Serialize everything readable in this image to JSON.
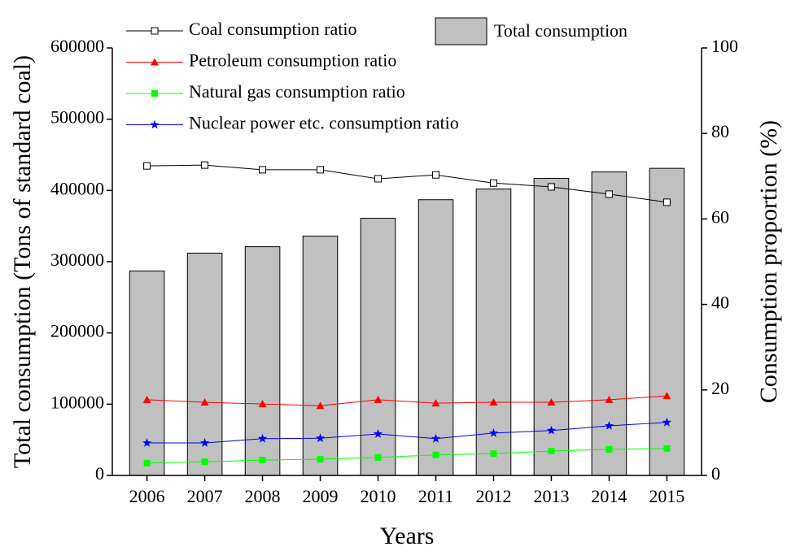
{
  "chart_data": {
    "type": "combo",
    "x_label": "Years",
    "y_label": "Total consumption (Tons of standard coal)",
    "y2_label": "Consumption proportion (%)",
    "categories": [
      "2006",
      "2007",
      "2008",
      "2009",
      "2010",
      "2011",
      "2012",
      "2013",
      "2014",
      "2015"
    ],
    "ylim": [
      0,
      600000
    ],
    "yticks": [
      0,
      100000,
      200000,
      300000,
      400000,
      500000,
      600000
    ],
    "y2lim": [
      0,
      100
    ],
    "y2ticks": [
      0,
      20,
      40,
      60,
      80,
      100
    ],
    "series": [
      {
        "name": "Coal consumption ratio",
        "type": "line",
        "axis": "y2",
        "color": "#000000",
        "marker": "open-square",
        "values": [
          72.4,
          72.6,
          71.5,
          71.5,
          69.4,
          70.3,
          68.4,
          67.5,
          65.8,
          63.9
        ]
      },
      {
        "name": "Total consumption",
        "type": "bar",
        "axis": "y",
        "color": "#c0c0c0",
        "values": [
          287000,
          312000,
          321000,
          336000,
          361000,
          387000,
          402000,
          417000,
          426000,
          431000
        ]
      },
      {
        "name": "Petroleum consumption ratio",
        "type": "line",
        "axis": "y2",
        "color": "#ff0000",
        "marker": "triangle",
        "values": [
          17.7,
          17.1,
          16.7,
          16.3,
          17.7,
          16.9,
          17.1,
          17.1,
          17.7,
          18.6
        ]
      },
      {
        "name": "Natural gas consumption ratio",
        "type": "line",
        "axis": "y2",
        "color": "#00ff00",
        "marker": "square",
        "values": [
          2.9,
          3.2,
          3.6,
          3.8,
          4.2,
          4.8,
          5.1,
          5.7,
          6.1,
          6.3
        ]
      },
      {
        "name": "Nuclear power etc. consumption ratio",
        "type": "line",
        "axis": "y2",
        "color": "#0000ff",
        "marker": "star",
        "values": [
          7.6,
          7.6,
          8.6,
          8.7,
          9.7,
          8.6,
          9.9,
          10.5,
          11.6,
          12.4
        ]
      }
    ]
  }
}
